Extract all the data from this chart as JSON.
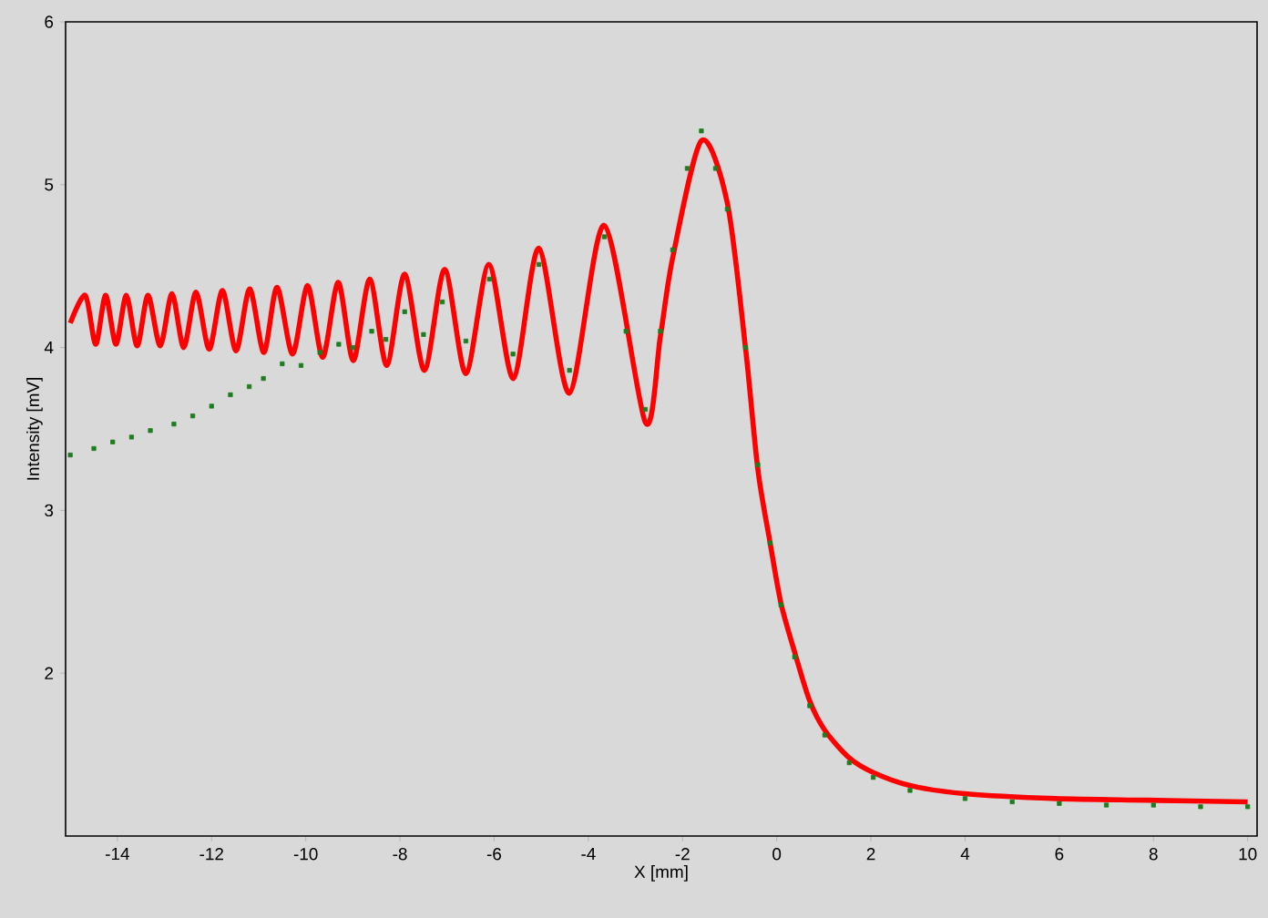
{
  "chart_data": {
    "type": "line",
    "xlabel": "X [mm]",
    "ylabel": "Intensity [mV]",
    "xlim": [
      -15.1,
      10.2
    ],
    "ylim": [
      1,
      6
    ],
    "xticks": [
      -14,
      -12,
      -10,
      -8,
      -6,
      -4,
      -2,
      0,
      2,
      4,
      6,
      8,
      10
    ],
    "yticks": [
      2,
      3,
      4,
      5,
      6
    ],
    "grid": false,
    "series": [
      {
        "type": "scatter",
        "marker": "square",
        "color": "#1e7d1e",
        "x": [
          -15.0,
          -14.5,
          -14.1,
          -13.7,
          -13.3,
          -12.8,
          -12.4,
          -12.0,
          -11.6,
          -11.2,
          -10.9,
          -10.5,
          -10.1,
          -9.7,
          -9.3,
          -9.0,
          -8.6,
          -8.3,
          -7.9,
          -7.5,
          -7.1,
          -6.6,
          -6.1,
          -5.6,
          -5.05,
          -4.4,
          -3.66,
          -3.2,
          -2.79,
          -2.47,
          -2.21,
          -1.9,
          -1.6,
          -1.3,
          -1.05,
          -0.66,
          -0.4,
          -0.14,
          0.09,
          0.38,
          0.7,
          1.02,
          1.54,
          2.05,
          2.83,
          4.0,
          5.0,
          6.0,
          7.0,
          8.0,
          9.0,
          10.0
        ],
        "values": [
          3.34,
          3.38,
          3.42,
          3.45,
          3.49,
          3.53,
          3.58,
          3.64,
          3.71,
          3.76,
          3.81,
          3.9,
          3.89,
          3.97,
          4.02,
          4.0,
          4.1,
          4.05,
          4.22,
          4.08,
          4.28,
          4.04,
          4.42,
          3.96,
          4.51,
          3.86,
          4.68,
          4.1,
          3.62,
          4.1,
          4.6,
          5.1,
          5.33,
          5.1,
          4.85,
          4.0,
          3.28,
          2.8,
          2.42,
          2.1,
          1.8,
          1.62,
          1.45,
          1.36,
          1.28,
          1.23,
          1.21,
          1.2,
          1.19,
          1.19,
          1.18,
          1.18
        ]
      },
      {
        "marker": "none",
        "color": "#ff0000",
        "x": [
          -15.0,
          -14.68,
          -14.46,
          -14.25,
          -14.03,
          -13.81,
          -13.58,
          -13.35,
          -13.09,
          -12.84,
          -12.59,
          -12.33,
          -12.05,
          -11.77,
          -11.48,
          -11.19,
          -10.89,
          -10.61,
          -10.28,
          -9.96,
          -9.64,
          -9.31,
          -8.99,
          -8.64,
          -8.28,
          -7.9,
          -7.48,
          -7.05,
          -6.6,
          -6.11,
          -5.59,
          -5.05,
          -4.4,
          -3.66,
          -2.79,
          -2.47,
          -2.21,
          -1.6,
          -1.05,
          -0.66,
          -0.4,
          -0.14,
          0.09,
          0.38,
          0.7,
          1.02,
          1.54,
          2.05,
          2.83,
          3.99,
          5.93,
          7.87,
          10.0
        ],
        "values": [
          4.15,
          4.32,
          4.02,
          4.32,
          4.02,
          4.32,
          4.01,
          4.32,
          4.01,
          4.33,
          4.0,
          4.34,
          3.99,
          4.35,
          3.98,
          4.36,
          3.97,
          4.37,
          3.96,
          4.38,
          3.94,
          4.4,
          3.92,
          4.42,
          3.89,
          4.45,
          3.86,
          4.48,
          3.84,
          4.51,
          3.81,
          4.61,
          3.72,
          4.75,
          3.54,
          4.07,
          4.55,
          5.27,
          4.89,
          3.99,
          3.25,
          2.8,
          2.43,
          2.13,
          1.83,
          1.65,
          1.48,
          1.39,
          1.31,
          1.26,
          1.23,
          1.22,
          1.21
        ]
      }
    ]
  }
}
